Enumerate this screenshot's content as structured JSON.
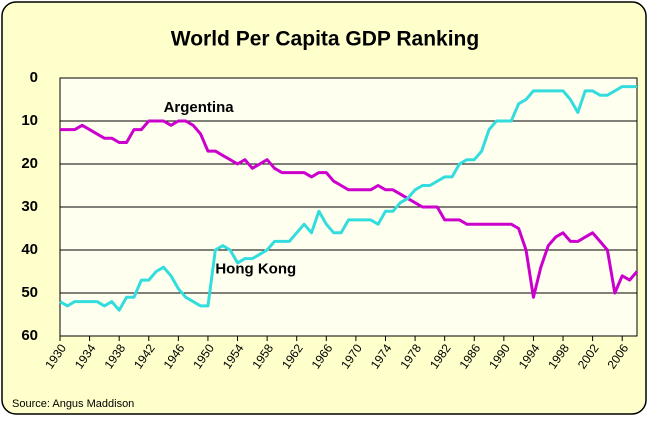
{
  "chart_data": {
    "type": "line",
    "title": "World Per Capita GDP Ranking",
    "source": "Source: Angus Maddison",
    "x": [
      1930,
      1931,
      1932,
      1933,
      1934,
      1935,
      1936,
      1937,
      1938,
      1939,
      1940,
      1941,
      1942,
      1943,
      1944,
      1945,
      1946,
      1947,
      1948,
      1949,
      1950,
      1951,
      1952,
      1953,
      1954,
      1955,
      1956,
      1957,
      1958,
      1959,
      1960,
      1961,
      1962,
      1963,
      1964,
      1965,
      1966,
      1967,
      1968,
      1969,
      1970,
      1971,
      1972,
      1973,
      1974,
      1975,
      1976,
      1977,
      1978,
      1979,
      1980,
      1981,
      1982,
      1983,
      1984,
      1985,
      1986,
      1987,
      1988,
      1989,
      1990,
      1991,
      1992,
      1993,
      1994,
      1995,
      1996,
      1997,
      1998,
      1999,
      2000,
      2001,
      2002,
      2003,
      2004,
      2005,
      2006,
      2007,
      2008
    ],
    "series": [
      {
        "name": "Argentina",
        "color": "#cc00cc",
        "values": [
          12,
          12,
          12,
          11,
          12,
          13,
          14,
          14,
          15,
          15,
          12,
          12,
          10,
          10,
          10,
          11,
          10,
          10,
          11,
          13,
          17,
          17,
          18,
          19,
          20,
          19,
          21,
          20,
          19,
          21,
          22,
          22,
          22,
          22,
          23,
          22,
          22,
          24,
          25,
          26,
          26,
          26,
          26,
          25,
          26,
          26,
          27,
          28,
          29,
          30,
          30,
          30,
          33,
          33,
          33,
          34,
          34,
          34,
          34,
          34,
          34,
          34,
          35,
          40,
          51,
          44,
          39,
          37,
          36,
          38,
          38,
          37,
          36,
          38,
          40,
          50,
          46,
          47,
          45
        ]
      },
      {
        "name": "Hong Kong",
        "color": "#33dddd",
        "values": [
          52,
          53,
          52,
          52,
          52,
          52,
          53,
          52,
          54,
          51,
          51,
          47,
          47,
          45,
          44,
          46,
          49,
          51,
          52,
          53,
          53,
          40,
          39,
          40,
          43,
          42,
          42,
          41,
          40,
          38,
          38,
          38,
          36,
          34,
          36,
          31,
          34,
          36,
          36,
          33,
          33,
          33,
          33,
          34,
          31,
          31,
          29,
          28,
          26,
          25,
          25,
          24,
          23,
          23,
          20,
          19,
          19,
          17,
          12,
          10,
          10,
          10,
          6,
          5,
          3,
          3,
          3,
          3,
          3,
          5,
          8,
          3,
          3,
          4,
          4,
          3,
          2,
          2,
          2
        ]
      }
    ],
    "xlim": [
      1930,
      2008
    ],
    "xticks": [
      1930,
      1934,
      1938,
      1942,
      1946,
      1950,
      1954,
      1958,
      1962,
      1966,
      1970,
      1974,
      1978,
      1982,
      1986,
      1990,
      1994,
      1998,
      2002,
      2006
    ],
    "ylim": [
      0,
      60
    ],
    "yticks": [
      0,
      10,
      20,
      30,
      40,
      50,
      60
    ],
    "y_inverted": true,
    "grid": true
  }
}
